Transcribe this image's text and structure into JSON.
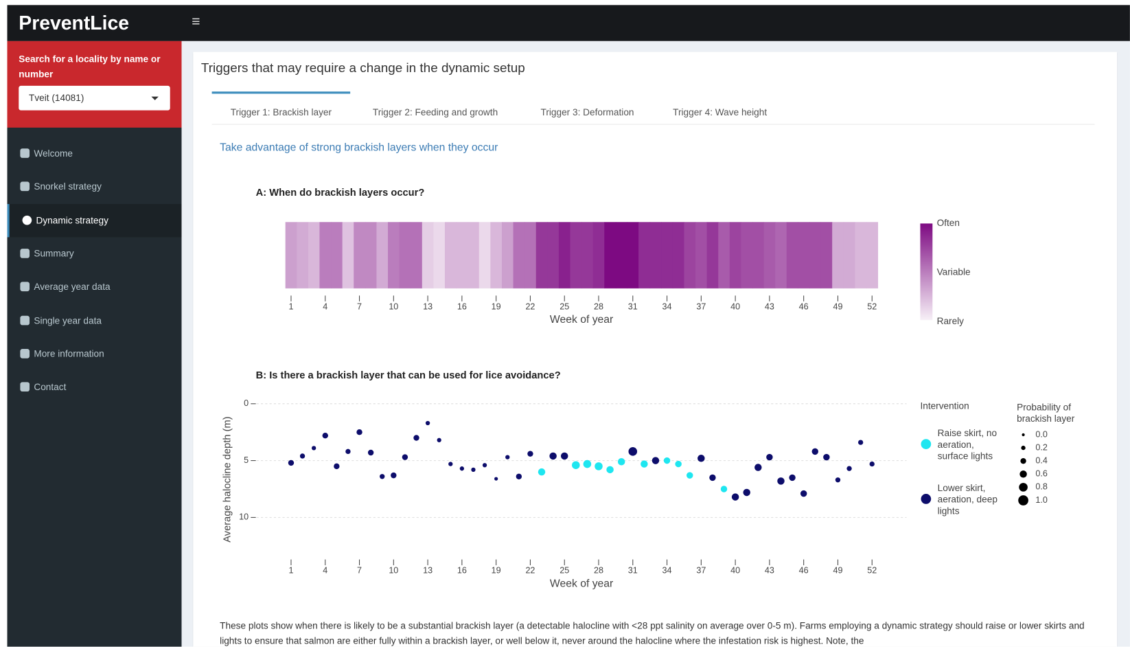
{
  "app": {
    "brand": "PreventLice"
  },
  "sidebar": {
    "search_label": "Search for a locality by name or number",
    "selected_locality": "Tveit (14081)",
    "menu": [
      "Welcome",
      "Snorkel strategy",
      "Dynamic strategy",
      "Summary",
      "Average year data",
      "Single year data",
      "More information",
      "Contact"
    ],
    "active_menu_index": 2
  },
  "panel": {
    "title": "Triggers that may require a change in the dynamic setup",
    "tabs": [
      "Trigger 1: Brackish layer",
      "Trigger 2: Feeding and growth",
      "Trigger 3: Deformation",
      "Trigger 4: Wave height"
    ],
    "active_tab_index": 0,
    "subtitle": "Take advantage of strong brackish layers when they occur",
    "footnote": "These plots show when there is likely to be a substantial brackish layer (a detectable halocline with <28 ppt salinity on average over 0-5 m). Farms employing a dynamic strategy should raise or lower skirts and lights to ensure that salmon are either fully within a brackish layer, or well below it, never around the halocline where the infestation risk is highest. Note, the"
  },
  "chart_data": [
    {
      "type": "heatmap",
      "title": "A: When do brackish layers occur?",
      "x_label": "Week of year",
      "x": [
        1,
        2,
        3,
        4,
        5,
        6,
        7,
        8,
        9,
        10,
        11,
        12,
        13,
        14,
        15,
        16,
        17,
        18,
        19,
        20,
        21,
        22,
        23,
        24,
        25,
        26,
        27,
        28,
        29,
        30,
        31,
        32,
        33,
        34,
        35,
        36,
        37,
        38,
        39,
        40,
        41,
        42,
        43,
        44,
        45,
        46,
        47,
        48,
        49,
        50,
        51,
        52
      ],
      "values": [
        0.35,
        0.3,
        0.25,
        0.5,
        0.5,
        0.2,
        0.45,
        0.45,
        0.3,
        0.5,
        0.55,
        0.55,
        0.15,
        0.1,
        0.25,
        0.25,
        0.25,
        0.1,
        0.25,
        0.35,
        0.55,
        0.55,
        0.8,
        0.8,
        0.9,
        0.8,
        0.8,
        0.85,
        1.0,
        1.0,
        1.0,
        0.85,
        0.85,
        0.85,
        0.85,
        0.75,
        0.7,
        0.8,
        0.65,
        0.75,
        0.7,
        0.7,
        0.65,
        0.6,
        0.7,
        0.7,
        0.7,
        0.7,
        0.3,
        0.3,
        0.25,
        0.25
      ],
      "xlim": [
        0.5,
        52.5
      ],
      "xticks": [
        1,
        4,
        7,
        10,
        13,
        16,
        19,
        22,
        25,
        28,
        31,
        34,
        37,
        40,
        43,
        46,
        49,
        52
      ],
      "colorbar_labels": [
        "Often",
        "Variable",
        "Rarely"
      ],
      "color_low": "#f7f0f7",
      "color_high": "#7d0a82"
    },
    {
      "type": "scatter",
      "title": "B: Is there a brackish layer that can be used for lice avoidance?",
      "x_label": "Week of year",
      "y_label": "Average halocline depth (m)",
      "xlim": [
        0.5,
        52.5
      ],
      "xticks": [
        1,
        4,
        7,
        10,
        13,
        16,
        19,
        22,
        25,
        28,
        31,
        34,
        37,
        40,
        43,
        46,
        49,
        52
      ],
      "ylim": [
        0,
        13
      ],
      "y_inverted": true,
      "yticks": [
        0,
        5,
        10
      ],
      "grid": true,
      "legend_title": "Intervention",
      "size_legend": {
        "title": "Probability of brackish layer",
        "values": [
          {
            "value": 0,
            "label": "0.0"
          },
          {
            "value": 0.2,
            "label": "0.2"
          },
          {
            "value": 0.4,
            "label": "0.4"
          },
          {
            "value": 0.6,
            "label": "0.6"
          },
          {
            "value": 0.8,
            "label": "0.8"
          },
          {
            "value": 1,
            "label": "1.0"
          }
        ]
      },
      "series": [
        {
          "name": "Raise skirt, no aeration, surface lights",
          "color": "#1ee6f0",
          "x": [
            23,
            26,
            27,
            28,
            29,
            30,
            32,
            34,
            35,
            36,
            39
          ],
          "values": [
            6.0,
            5.4,
            5.3,
            5.5,
            5.8,
            5.1,
            5.3,
            5.0,
            5.3,
            6.3,
            7.5
          ],
          "sizes": [
            0.6,
            0.7,
            0.7,
            0.7,
            0.6,
            0.6,
            0.6,
            0.5,
            0.5,
            0.5,
            0.5
          ]
        },
        {
          "name": "Lower skirt, aeration, deep lights",
          "color": "#0d0d6b",
          "x": [
            1,
            2,
            3,
            4,
            5,
            6,
            7,
            8,
            9,
            10,
            11,
            12,
            13,
            14,
            15,
            16,
            17,
            18,
            19,
            20,
            21,
            22,
            24,
            25,
            31,
            33,
            37,
            38,
            40,
            41,
            42,
            43,
            44,
            45,
            46,
            47,
            48,
            49,
            50,
            51,
            52
          ],
          "values": [
            5.2,
            4.6,
            3.9,
            2.8,
            5.5,
            4.2,
            2.5,
            4.3,
            6.4,
            6.3,
            4.7,
            3.0,
            1.7,
            3.2,
            5.3,
            5.7,
            5.8,
            5.4,
            6.6,
            4.7,
            6.4,
            4.4,
            4.6,
            4.6,
            4.2,
            5.0,
            4.8,
            6.5,
            8.2,
            7.8,
            5.6,
            4.7,
            6.8,
            6.5,
            7.9,
            4.2,
            4.7,
            6.7,
            5.7,
            3.4,
            5.3
          ],
          "sizes": [
            0.4,
            0.3,
            0.2,
            0.4,
            0.4,
            0.3,
            0.4,
            0.4,
            0.3,
            0.4,
            0.4,
            0.4,
            0.2,
            0.2,
            0.2,
            0.2,
            0.2,
            0.2,
            0.1,
            0.2,
            0.4,
            0.4,
            0.6,
            0.6,
            0.8,
            0.6,
            0.6,
            0.5,
            0.6,
            0.6,
            0.6,
            0.5,
            0.6,
            0.5,
            0.5,
            0.5,
            0.5,
            0.3,
            0.3,
            0.3,
            0.3
          ]
        }
      ]
    }
  ]
}
